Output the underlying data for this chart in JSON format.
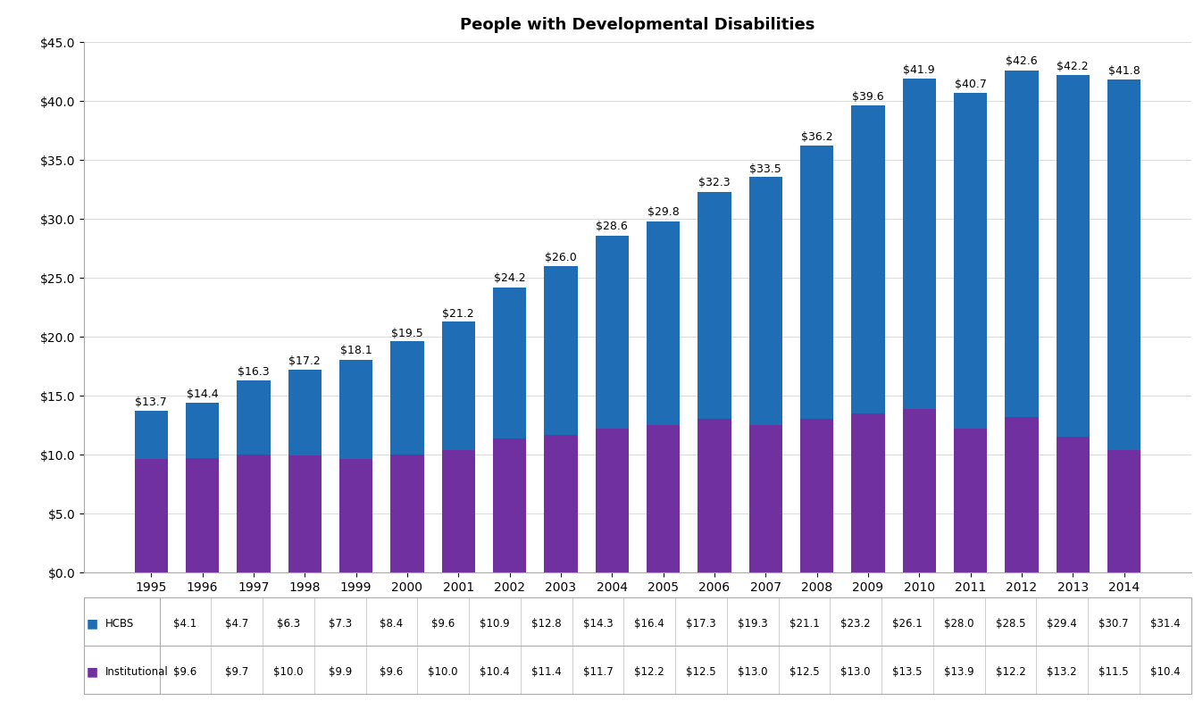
{
  "title": "People with Developmental Disabilities",
  "years": [
    1995,
    1996,
    1997,
    1998,
    1999,
    2000,
    2001,
    2002,
    2003,
    2004,
    2005,
    2006,
    2007,
    2008,
    2009,
    2010,
    2011,
    2012,
    2013,
    2014
  ],
  "hcbs": [
    4.1,
    4.7,
    6.3,
    7.3,
    8.4,
    9.6,
    10.9,
    12.8,
    14.3,
    16.4,
    17.3,
    19.3,
    21.1,
    23.2,
    26.1,
    28.0,
    28.5,
    29.4,
    30.7,
    31.4
  ],
  "institutional": [
    9.6,
    9.7,
    10.0,
    9.9,
    9.6,
    10.0,
    10.4,
    11.4,
    11.7,
    12.2,
    12.5,
    13.0,
    12.5,
    13.0,
    13.5,
    13.9,
    12.2,
    13.2,
    11.5,
    10.4
  ],
  "totals": [
    13.7,
    14.4,
    16.3,
    17.2,
    18.1,
    19.5,
    21.2,
    24.2,
    26.0,
    28.6,
    29.8,
    32.3,
    33.5,
    36.2,
    39.6,
    41.9,
    40.7,
    42.6,
    42.2,
    41.8
  ],
  "hcbs_color": "#1F6EB5",
  "institutional_color": "#7030A0",
  "background_color": "#FFFFFF",
  "ylim": [
    0,
    45
  ],
  "yticks": [
    0,
    5,
    10,
    15,
    20,
    25,
    30,
    35,
    40,
    45
  ],
  "ytick_labels": [
    "$0.0",
    "$5.0",
    "$10.0",
    "$15.0",
    "$20.0",
    "$25.0",
    "$30.0",
    "$35.0",
    "$40.0",
    "$45.0"
  ],
  "legend_hcbs": "HCBS",
  "legend_institutional": "Institutional",
  "title_fontsize": 13,
  "tick_fontsize": 10,
  "annotation_fontsize": 9,
  "table_fontsize": 8.5,
  "bar_width": 0.65
}
